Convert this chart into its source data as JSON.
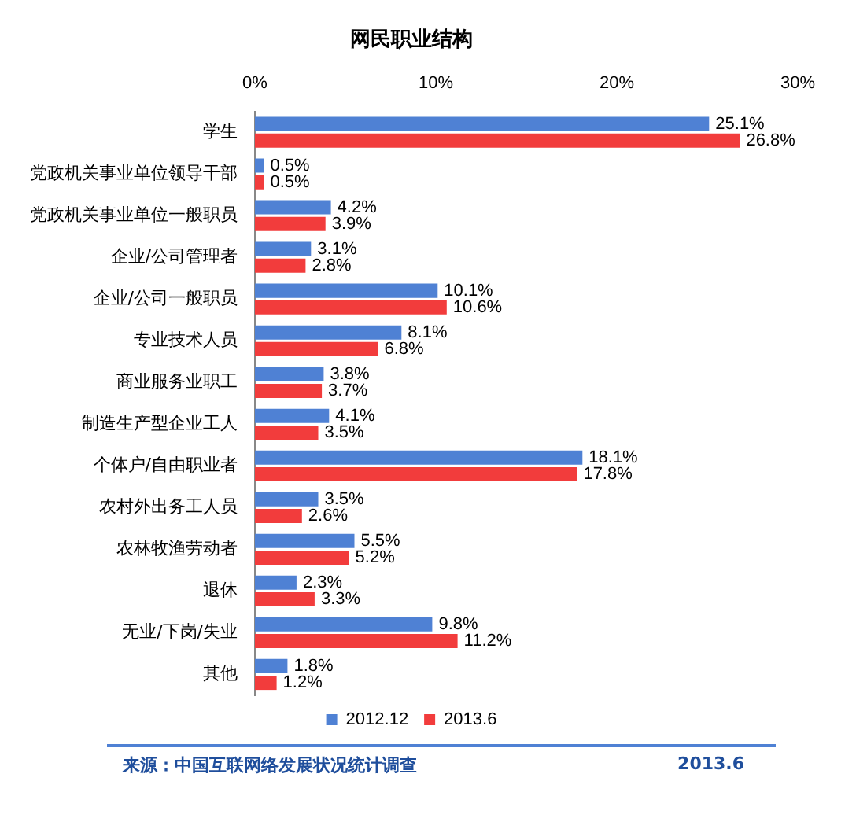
{
  "chart_data": {
    "type": "bar",
    "orientation": "horizontal",
    "title": "网民职业结构",
    "categories": [
      "学生",
      "党政机关事业单位领导干部",
      "党政机关事业单位一般职员",
      "企业/公司管理者",
      "企业/公司一般职员",
      "专业技术人员",
      "商业服务业职工",
      "制造生产型企业工人",
      "个体户/自由职业者",
      "农村外出务工人员",
      "农林牧渔劳动者",
      "退休",
      "无业/下岗/失业",
      "其他"
    ],
    "series": [
      {
        "name": "2012.12",
        "color": "#4f81d4",
        "values": [
          25.1,
          0.5,
          4.2,
          3.1,
          10.1,
          8.1,
          3.8,
          4.1,
          18.1,
          3.5,
          5.5,
          2.3,
          9.8,
          1.8
        ],
        "value_labels": [
          "25.1%",
          "0.5%",
          "4.2%",
          "3.1%",
          "10.1%",
          "8.1%",
          "3.8%",
          "4.1%",
          "18.1%",
          "3.5%",
          "5.5%",
          "2.3%",
          "9.8%",
          "1.8%"
        ]
      },
      {
        "name": "2013.6",
        "color": "#f23c3c",
        "values": [
          26.8,
          0.5,
          3.9,
          2.8,
          10.6,
          6.8,
          3.7,
          3.5,
          17.8,
          2.6,
          5.2,
          3.3,
          11.2,
          1.2
        ],
        "value_labels": [
          "26.8%",
          "0.5%",
          "3.9%",
          "2.8%",
          "10.6%",
          "6.8%",
          "3.7%",
          "3.5%",
          "17.8%",
          "2.6%",
          "5.2%",
          "3.3%",
          "11.2%",
          "1.2%"
        ]
      }
    ],
    "xlim": [
      0,
      30
    ],
    "xticks": [
      {
        "value": 0,
        "label": "0%"
      },
      {
        "value": 10,
        "label": "10%"
      },
      {
        "value": 20,
        "label": "20%"
      },
      {
        "value": 30,
        "label": "30%"
      }
    ],
    "grid": false,
    "legend": "bottom",
    "annotations": [
      "来源：中国互联网络发展状况统计调查",
      "2013.6"
    ]
  }
}
